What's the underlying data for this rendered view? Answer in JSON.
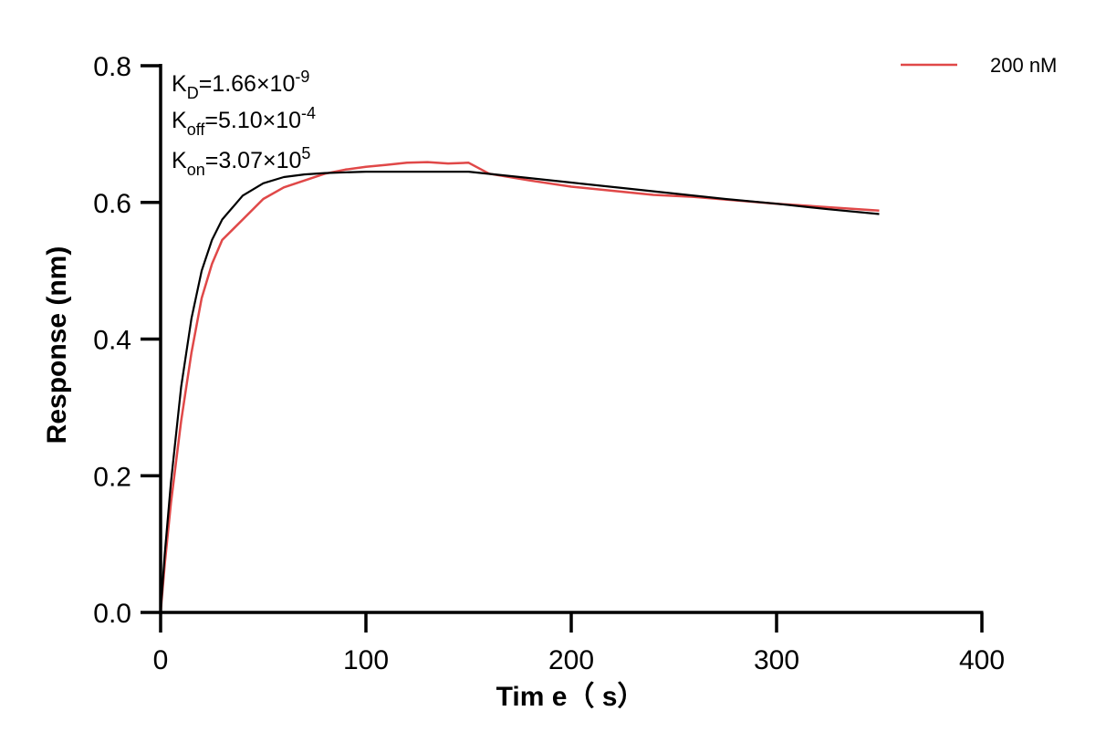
{
  "chart_data": {
    "type": "line",
    "title": "",
    "xlabel": "Tim e（ s）",
    "ylabel": "Response (nm)",
    "xlim": [
      0,
      400
    ],
    "ylim": [
      0,
      0.8
    ],
    "xticks": [
      0,
      100,
      200,
      300,
      400
    ],
    "yticks": [
      0.0,
      0.2,
      0.4,
      0.6,
      0.8
    ],
    "xtick_labels": [
      "0",
      "100",
      "200",
      "300",
      "400"
    ],
    "ytick_labels": [
      "0.0",
      "0.2",
      "0.4",
      "0.6",
      "0.8"
    ],
    "grid": false,
    "legend_position": "top-right",
    "annotations": [
      {
        "base": "K",
        "sub": "D",
        "value": "=1.66×10",
        "sup": "-9"
      },
      {
        "base": "K",
        "sub": "off",
        "value": "=5.10×10",
        "sup": "-4"
      },
      {
        "base": "K",
        "sub": "on",
        "value": "=3.07×10",
        "sup": "5"
      }
    ],
    "series": [
      {
        "name": "200 nM",
        "color": "#e04848",
        "x": [
          0,
          2,
          5,
          10,
          15,
          20,
          25,
          30,
          40,
          50,
          60,
          70,
          80,
          90,
          100,
          110,
          120,
          130,
          140,
          150,
          155,
          160,
          180,
          200,
          220,
          240,
          260,
          280,
          300,
          320,
          340,
          350
        ],
        "y": [
          0.0,
          0.07,
          0.16,
          0.28,
          0.38,
          0.46,
          0.51,
          0.545,
          0.575,
          0.605,
          0.622,
          0.632,
          0.642,
          0.648,
          0.652,
          0.655,
          0.658,
          0.659,
          0.657,
          0.658,
          0.65,
          0.642,
          0.632,
          0.623,
          0.617,
          0.611,
          0.608,
          0.603,
          0.598,
          0.594,
          0.59,
          0.588
        ]
      },
      {
        "name": "",
        "color": "#000000",
        "x": [
          0,
          2,
          5,
          10,
          15,
          20,
          25,
          30,
          40,
          50,
          60,
          70,
          80,
          90,
          100,
          120,
          140,
          150,
          175,
          200,
          225,
          250,
          275,
          300,
          325,
          350
        ],
        "y": [
          0.0,
          0.085,
          0.19,
          0.33,
          0.43,
          0.5,
          0.545,
          0.575,
          0.61,
          0.628,
          0.637,
          0.641,
          0.643,
          0.644,
          0.645,
          0.645,
          0.645,
          0.645,
          0.637,
          0.629,
          0.621,
          0.613,
          0.605,
          0.598,
          0.59,
          0.583
        ]
      }
    ]
  }
}
